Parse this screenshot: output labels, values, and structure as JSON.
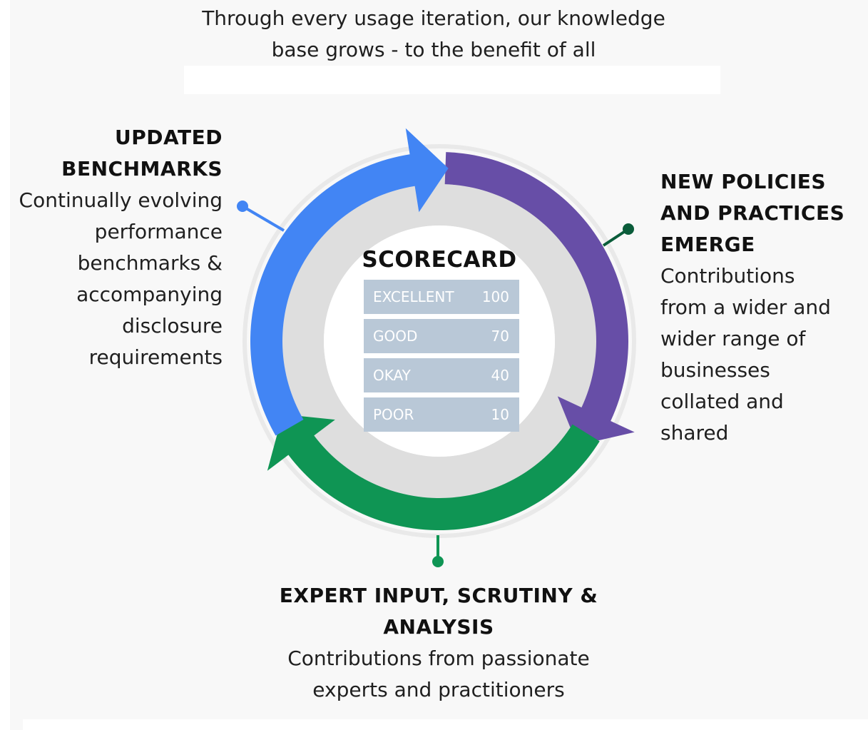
{
  "intro": {
    "line1": "Through every usage iteration, our knowledge",
    "line2": "base grows - to the benefit of all"
  },
  "updated_benchmarks": {
    "heading": [
      "UPDATED",
      "BENCHMARKS"
    ],
    "text": [
      "Continually evolving",
      "performance",
      "benchmarks &",
      "accompanying",
      "disclosure",
      "requirements"
    ]
  },
  "new_policies": {
    "heading": [
      "NEW POLICIES",
      "AND PRACTICES",
      "EMERGE"
    ],
    "text": [
      "Contributions",
      "from a wider and",
      "wider range of",
      "businesses",
      "collated and",
      "shared"
    ]
  },
  "expert_input": {
    "heading": [
      "EXPERT INPUT, SCRUTINY &",
      "ANALYSIS"
    ],
    "text": [
      "Contributions from passionate",
      "experts and practitioners"
    ]
  },
  "scorecard": {
    "title": "SCORECARD",
    "rows": [
      {
        "label": "EXCELLENT",
        "value": "100"
      },
      {
        "label": "GOOD",
        "value": "70"
      },
      {
        "label": "OKAY",
        "value": "40"
      },
      {
        "label": "POOR",
        "value": "10"
      }
    ]
  },
  "colors": {
    "blue_arrow": "#4285f4",
    "purple_arrow": "#674ea7",
    "green_arrow": "#0f9554",
    "ring_gray": "#dedede",
    "scorecard_row": "#b9c8d7"
  },
  "icons": {
    "blue_arrow": "cycle-arrow-blue",
    "purple_arrow": "cycle-arrow-purple",
    "green_arrow": "cycle-arrow-green"
  }
}
